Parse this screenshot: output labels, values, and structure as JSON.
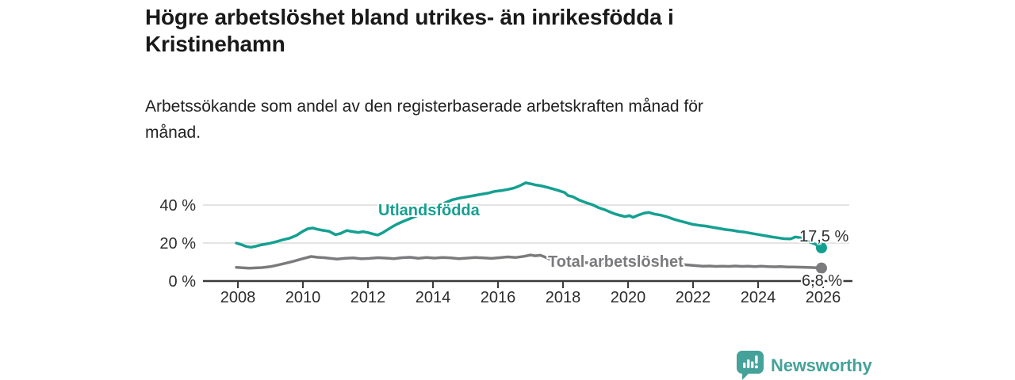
{
  "header": {
    "title": "Högre arbetslöshet bland utrikes- än inrikesfödda i Kristinehamn",
    "title_lines": [
      "Högre arbetslöshet bland utrikes- än inrikesfödda i",
      "Kristinehamn"
    ],
    "subtitle": "Arbetssökande som andel av den registerbaserade arbetskraften månad för månad.",
    "subtitle_lines": [
      "Arbetssökande som andel av den registerbaserade arbetskraften månad för",
      "månad."
    ]
  },
  "colors": {
    "series_foreign": "#14A091",
    "series_total": "#7B7B7E",
    "axis": "#3A3A3A",
    "gridline": "#DBDBDB",
    "tick_text": "#2D2D2D",
    "value_text": "#2F2F2F",
    "logo": "#45A29A",
    "title_text": "#191919"
  },
  "chart_data": {
    "type": "line",
    "title": "Högre arbetslöshet bland utrikes- än inrikesfödda i Kristinehamn",
    "subtitle": "Arbetssökande som andel av den registerbaserade arbetskraften månad för månad.",
    "unit": "%",
    "grid": "horizontal",
    "legend": "inline-labels",
    "x_axis": {
      "ticks": [
        2008,
        2010,
        2012,
        2014,
        2016,
        2018,
        2020,
        2022,
        2024,
        2026
      ],
      "range": [
        2007.95,
        2026.6
      ]
    },
    "y_axis": {
      "ticks": [
        {
          "value": 0,
          "label": "0 %"
        },
        {
          "value": 20,
          "label": "20 %"
        },
        {
          "value": 40,
          "label": "40 %"
        }
      ],
      "range": [
        0,
        55
      ]
    },
    "series": [
      {
        "name": "Utlandsfödda",
        "color": "#14A091",
        "end_label": "17,5 %",
        "end_value": 17.5,
        "points": [
          [
            2007.95,
            20.0
          ],
          [
            2008.1,
            19.2
          ],
          [
            2008.25,
            18.2
          ],
          [
            2008.4,
            17.8
          ],
          [
            2008.55,
            18.3
          ],
          [
            2008.7,
            19.0
          ],
          [
            2008.85,
            19.4
          ],
          [
            2009.0,
            19.9
          ],
          [
            2009.2,
            20.8
          ],
          [
            2009.4,
            21.8
          ],
          [
            2009.6,
            22.6
          ],
          [
            2009.8,
            24.0
          ],
          [
            2010.0,
            26.2
          ],
          [
            2010.15,
            27.5
          ],
          [
            2010.3,
            27.9
          ],
          [
            2010.45,
            27.2
          ],
          [
            2010.6,
            26.7
          ],
          [
            2010.8,
            26.2
          ],
          [
            2011.0,
            24.4
          ],
          [
            2011.15,
            25.0
          ],
          [
            2011.35,
            26.6
          ],
          [
            2011.5,
            26.1
          ],
          [
            2011.7,
            25.6
          ],
          [
            2011.85,
            26.0
          ],
          [
            2012.0,
            25.5
          ],
          [
            2012.15,
            24.8
          ],
          [
            2012.3,
            24.2
          ],
          [
            2012.45,
            25.4
          ],
          [
            2012.6,
            27.0
          ],
          [
            2012.75,
            28.6
          ],
          [
            2012.9,
            30.0
          ],
          [
            2013.1,
            31.5
          ],
          [
            2013.35,
            33.2
          ],
          [
            2013.6,
            35.0
          ],
          [
            2013.85,
            37.0
          ],
          [
            2014.1,
            39.0
          ],
          [
            2014.35,
            41.0
          ],
          [
            2014.6,
            42.8
          ],
          [
            2014.8,
            43.6
          ],
          [
            2015.0,
            44.2
          ],
          [
            2015.2,
            44.8
          ],
          [
            2015.45,
            45.6
          ],
          [
            2015.7,
            46.3
          ],
          [
            2015.9,
            47.2
          ],
          [
            2016.1,
            47.6
          ],
          [
            2016.3,
            48.2
          ],
          [
            2016.5,
            49.0
          ],
          [
            2016.65,
            50.0
          ],
          [
            2016.85,
            51.7
          ],
          [
            2017.0,
            51.2
          ],
          [
            2017.15,
            50.6
          ],
          [
            2017.3,
            50.2
          ],
          [
            2017.45,
            49.6
          ],
          [
            2017.6,
            48.9
          ],
          [
            2017.75,
            48.2
          ],
          [
            2017.9,
            47.4
          ],
          [
            2018.05,
            46.6
          ],
          [
            2018.15,
            45.0
          ],
          [
            2018.3,
            44.4
          ],
          [
            2018.5,
            42.6
          ],
          [
            2018.7,
            41.3
          ],
          [
            2018.9,
            40.2
          ],
          [
            2019.1,
            38.6
          ],
          [
            2019.3,
            37.4
          ],
          [
            2019.45,
            36.3
          ],
          [
            2019.6,
            35.3
          ],
          [
            2019.75,
            34.6
          ],
          [
            2019.9,
            33.9
          ],
          [
            2020.05,
            34.4
          ],
          [
            2020.15,
            33.5
          ],
          [
            2020.3,
            34.6
          ],
          [
            2020.5,
            35.8
          ],
          [
            2020.65,
            36.1
          ],
          [
            2020.8,
            35.3
          ],
          [
            2021.0,
            34.7
          ],
          [
            2021.2,
            33.8
          ],
          [
            2021.4,
            32.6
          ],
          [
            2021.6,
            31.6
          ],
          [
            2021.8,
            30.7
          ],
          [
            2022.0,
            29.8
          ],
          [
            2022.2,
            29.3
          ],
          [
            2022.4,
            28.9
          ],
          [
            2022.6,
            28.3
          ],
          [
            2022.8,
            27.7
          ],
          [
            2023.0,
            27.1
          ],
          [
            2023.2,
            26.7
          ],
          [
            2023.4,
            26.1
          ],
          [
            2023.6,
            25.7
          ],
          [
            2023.8,
            25.1
          ],
          [
            2024.0,
            24.5
          ],
          [
            2024.2,
            23.9
          ],
          [
            2024.4,
            23.3
          ],
          [
            2024.6,
            22.8
          ],
          [
            2024.8,
            22.3
          ],
          [
            2025.0,
            22.2
          ],
          [
            2025.15,
            23.2
          ],
          [
            2025.3,
            22.8
          ],
          [
            2025.45,
            21.6
          ],
          [
            2025.6,
            20.5
          ],
          [
            2025.75,
            19.5
          ],
          [
            2025.85,
            18.5
          ],
          [
            2025.95,
            17.5
          ]
        ]
      },
      {
        "name": "Total arbetslöshet",
        "color": "#7B7B7E",
        "end_label": "6,8 %",
        "end_value": 6.8,
        "points": [
          [
            2007.95,
            7.2
          ],
          [
            2008.15,
            7.0
          ],
          [
            2008.35,
            6.8
          ],
          [
            2008.55,
            6.9
          ],
          [
            2008.75,
            7.1
          ],
          [
            2009.0,
            7.6
          ],
          [
            2009.25,
            8.5
          ],
          [
            2009.5,
            9.5
          ],
          [
            2009.75,
            10.6
          ],
          [
            2010.0,
            11.8
          ],
          [
            2010.25,
            12.9
          ],
          [
            2010.45,
            12.5
          ],
          [
            2010.65,
            12.3
          ],
          [
            2010.85,
            11.9
          ],
          [
            2011.05,
            11.6
          ],
          [
            2011.3,
            12.0
          ],
          [
            2011.55,
            12.2
          ],
          [
            2011.8,
            11.7
          ],
          [
            2012.05,
            11.9
          ],
          [
            2012.3,
            12.3
          ],
          [
            2012.55,
            12.1
          ],
          [
            2012.8,
            11.8
          ],
          [
            2013.05,
            12.3
          ],
          [
            2013.3,
            12.5
          ],
          [
            2013.55,
            12.0
          ],
          [
            2013.8,
            12.4
          ],
          [
            2014.05,
            12.1
          ],
          [
            2014.3,
            12.4
          ],
          [
            2014.55,
            12.2
          ],
          [
            2014.8,
            11.8
          ],
          [
            2015.05,
            12.1
          ],
          [
            2015.3,
            12.4
          ],
          [
            2015.55,
            12.2
          ],
          [
            2015.8,
            11.9
          ],
          [
            2016.05,
            12.3
          ],
          [
            2016.3,
            12.7
          ],
          [
            2016.55,
            12.4
          ],
          [
            2016.8,
            13.0
          ],
          [
            2017.0,
            13.7
          ],
          [
            2017.15,
            13.3
          ],
          [
            2017.3,
            13.6
          ],
          [
            2017.45,
            12.6
          ],
          [
            2017.6,
            11.4
          ],
          [
            2017.8,
            10.6
          ],
          [
            2018.1,
            10.2
          ],
          [
            2018.5,
            9.8
          ],
          [
            2019.0,
            9.5
          ],
          [
            2019.5,
            9.4
          ],
          [
            2020.0,
            10.6
          ],
          [
            2020.4,
            10.9
          ],
          [
            2020.8,
            10.2
          ],
          [
            2021.2,
            9.4
          ],
          [
            2021.6,
            8.8
          ],
          [
            2022.0,
            8.2
          ],
          [
            2022.3,
            7.8
          ],
          [
            2022.5,
            7.9
          ],
          [
            2022.7,
            7.7
          ],
          [
            2022.9,
            7.8
          ],
          [
            2023.1,
            7.7
          ],
          [
            2023.3,
            7.9
          ],
          [
            2023.5,
            7.7
          ],
          [
            2023.7,
            7.8
          ],
          [
            2023.9,
            7.6
          ],
          [
            2024.1,
            7.8
          ],
          [
            2024.3,
            7.6
          ],
          [
            2024.5,
            7.5
          ],
          [
            2024.7,
            7.6
          ],
          [
            2024.9,
            7.4
          ],
          [
            2025.1,
            7.4
          ],
          [
            2025.3,
            7.3
          ],
          [
            2025.5,
            7.2
          ],
          [
            2025.7,
            7.1
          ],
          [
            2025.85,
            6.9
          ],
          [
            2025.95,
            6.8
          ]
        ]
      }
    ]
  },
  "footer": {
    "brand": "Newsworthy",
    "logo_icon": "bar-chart-speech-bubble-icon"
  }
}
